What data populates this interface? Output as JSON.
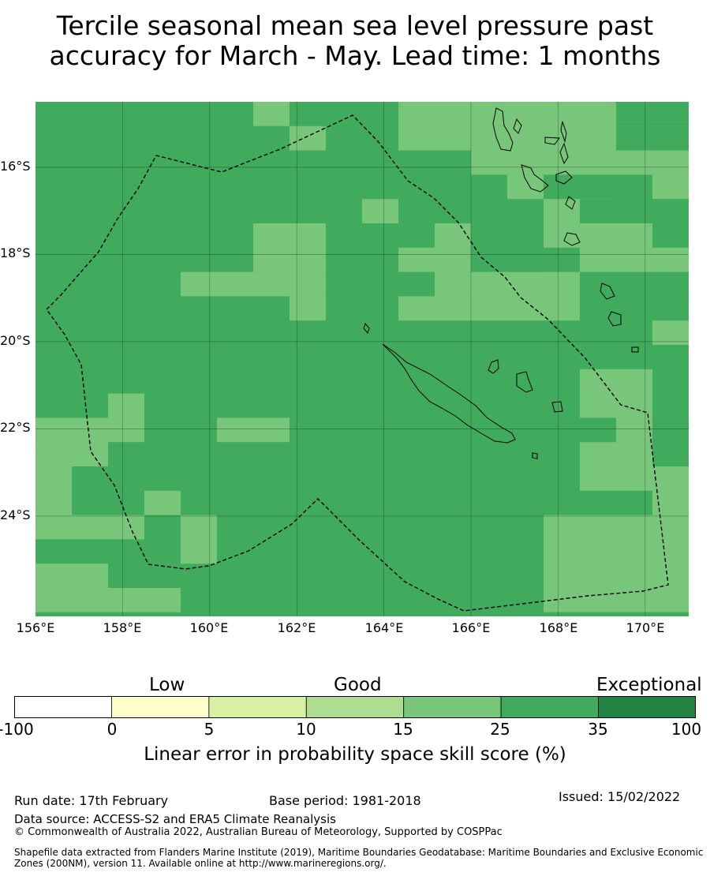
{
  "title_line1": "Tercile seasonal mean sea level pressure past",
  "title_line2": "accuracy for March - May. Lead time: 1 months",
  "map": {
    "lon_range": [
      156,
      171
    ],
    "lat_range": [
      -26.3,
      -14.5
    ],
    "lat_ticks": [
      "16°S",
      "18°S",
      "20°S",
      "22°S",
      "24°S"
    ],
    "lon_ticks": [
      "156°E",
      "158°E",
      "160°E",
      "162°E",
      "164°E",
      "166°E",
      "168°E",
      "170°E"
    ],
    "gridlines": true,
    "features": [
      "skill score grid",
      "exclusive economic zone boundary (dashed)",
      "New Caledonia coastline",
      "Vanuatu coastline"
    ]
  },
  "colorbar": {
    "categories": [
      "Low",
      "Good",
      "Exceptional"
    ],
    "ticks": [
      "-100",
      "0",
      "5",
      "10",
      "15",
      "25",
      "35",
      "100"
    ],
    "colors": [
      "#ffffff",
      "#ffffcc",
      "#d9f0a3",
      "#addd8e",
      "#78c679",
      "#41ab5d",
      "#238443"
    ],
    "title": "Linear error in probability space skill score (%)"
  },
  "footer": {
    "run_date": "Run date: 17th February",
    "base_period": "Base period: 1981-2018",
    "issued": "Issued: 15/02/2022",
    "data_source": "Data source: ACCESS-S2 and ERA5 Climate Reanalysis",
    "copyright": "© Commonwealth of Australia 2022, Australian Bureau of Meteorology, Supported by COSPPac",
    "shapefile_line1": "Shapefile data extracted from Flanders Marine Institute (2019), Maritime Boundaries Geodatabase: Maritime Boundaries and Exclusive Economic",
    "shapefile_line2": "Zones (200NM), version 11. Available online at http://www.marineregions.org/."
  }
}
